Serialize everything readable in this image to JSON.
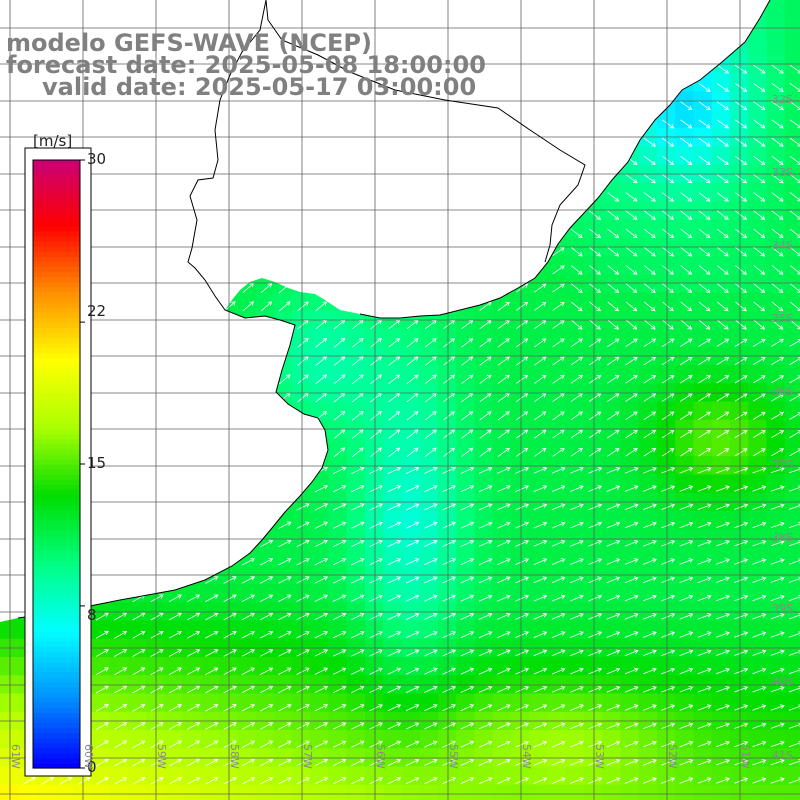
{
  "title": {
    "line1": "modelo GEFS-WAVE (NCEP)",
    "line2": "forecast date: 2025-05-08 18:00:00",
    "line3": "valid date: 2025-05-17 03:00:00"
  },
  "colorbar": {
    "unit": "[m/s]",
    "ticks": [
      "30",
      "22",
      "15",
      "8",
      "0"
    ],
    "tick_values": [
      30,
      22,
      15,
      8,
      0
    ],
    "min": 0,
    "max": 30,
    "colors": [
      "#0000ff",
      "#0090ff",
      "#00ffff",
      "#00ff80",
      "#00dd00",
      "#aaff00",
      "#ffff00",
      "#ff9000",
      "#ff0000",
      "#c8007a"
    ]
  },
  "axes": {
    "lat_labels": [
      "32S",
      "33S",
      "34S",
      "35S",
      "36S",
      "37S",
      "38S",
      "39S",
      "40S",
      "41S"
    ],
    "lon_labels": [
      "61W",
      "60W",
      "59W",
      "58W",
      "57W",
      "56W",
      "55W",
      "54W",
      "53W",
      "52W",
      "51W"
    ],
    "lat_range": [
      -41.5,
      -30.5
    ],
    "lon_range": [
      -61.3,
      -50.4
    ],
    "grid": true
  },
  "colors": {
    "title_text": "#808080",
    "coastline": "#000000",
    "grid": "#606060",
    "arrows": "#ffffff",
    "land": "#ffffff"
  }
}
